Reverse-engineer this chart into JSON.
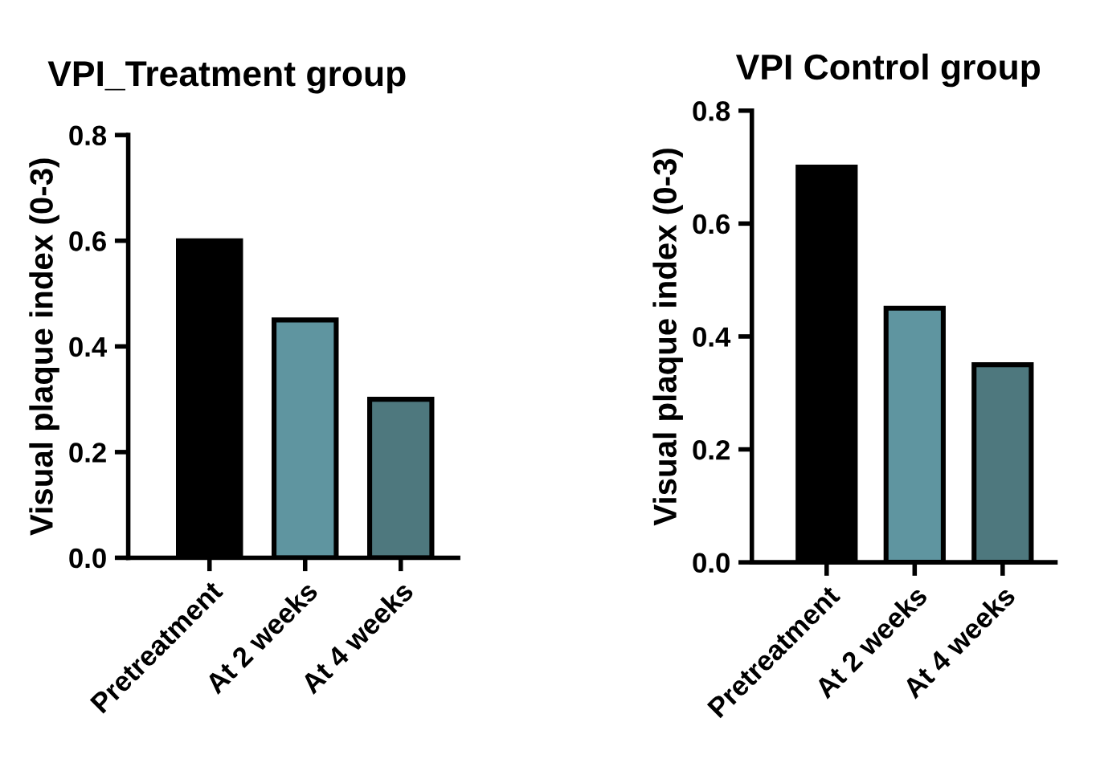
{
  "chart_data": [
    {
      "type": "bar",
      "title": "VPI_Treatment group",
      "ylabel": "Visual plaque index (0-3)",
      "categories": [
        "Pretreatment",
        "At 2 weeks",
        "At 4 weeks"
      ],
      "values": [
        0.6,
        0.45,
        0.3
      ],
      "colors": [
        "#000000",
        "#5f95a0",
        "#4e787e"
      ],
      "ylim": [
        0,
        0.8
      ],
      "yticks": [
        {
          "value": 0,
          "label": "0.0"
        },
        0.2,
        0.4,
        0.6,
        0.8
      ],
      "grid": false,
      "legend": false
    },
    {
      "type": "bar",
      "title": "VPI Control group",
      "ylabel": "Visual plaque index (0-3)",
      "categories": [
        "Pretreatment",
        "At 2 weeks",
        "At 4 weeks"
      ],
      "values": [
        0.7,
        0.45,
        0.35
      ],
      "colors": [
        "#000000",
        "#5f95a0",
        "#4e787e"
      ],
      "ylim": [
        0,
        0.8
      ],
      "yticks": [
        {
          "value": 0,
          "label": "0.0"
        },
        0.2,
        0.4,
        0.6,
        0.8
      ],
      "grid": false,
      "legend": false
    }
  ]
}
